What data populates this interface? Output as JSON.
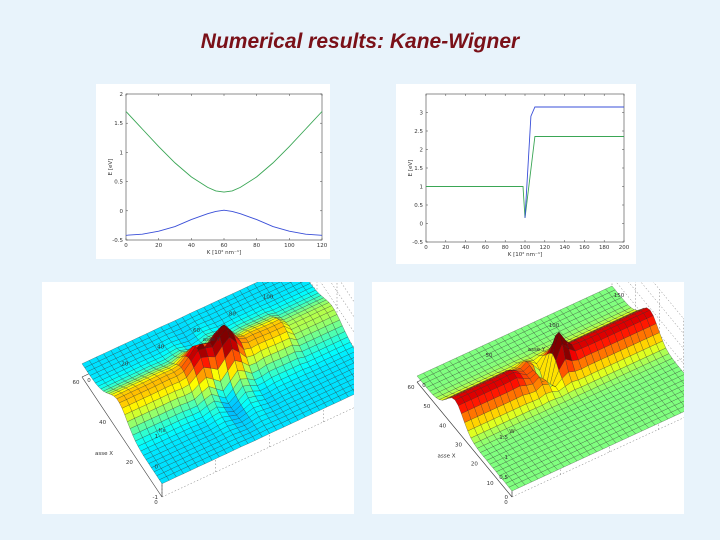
{
  "title": "Numerical results: Kane-Wigner",
  "chart_data": [
    {
      "type": "line",
      "xlabel": "K [10² nm⁻¹]",
      "ylabel": "E [eV]",
      "xlim": [
        0,
        120
      ],
      "ylim": [
        -0.5,
        2
      ],
      "xticks": [
        "0",
        "20",
        "40",
        "60",
        "80",
        "100",
        "120"
      ],
      "yticks": [
        "-0.5",
        "0",
        "0.5",
        "1",
        "1.5",
        "2"
      ],
      "grid": false,
      "series": [
        {
          "color": "#3aa655",
          "x": [
            0,
            10,
            20,
            30,
            40,
            50,
            55,
            60,
            65,
            70,
            80,
            90,
            100,
            110,
            120
          ],
          "values": [
            1.7,
            1.4,
            1.1,
            0.82,
            0.58,
            0.4,
            0.34,
            0.32,
            0.34,
            0.4,
            0.58,
            0.82,
            1.1,
            1.4,
            1.7
          ]
        },
        {
          "color": "#3a4fd8",
          "x": [
            0,
            10,
            20,
            30,
            40,
            50,
            55,
            60,
            65,
            70,
            80,
            90,
            100,
            110,
            120
          ],
          "values": [
            -0.42,
            -0.4,
            -0.35,
            -0.27,
            -0.15,
            -0.05,
            -0.01,
            0.01,
            -0.01,
            -0.05,
            -0.15,
            -0.27,
            -0.35,
            -0.4,
            -0.42
          ]
        }
      ]
    },
    {
      "type": "line",
      "xlabel": "K [10² nm⁻¹]",
      "ylabel": "E [eV]",
      "xlim": [
        0,
        200
      ],
      "ylim": [
        -0.5,
        3.5
      ],
      "xticks": [
        "0",
        "20",
        "40",
        "60",
        "80",
        "100",
        "120",
        "140",
        "160",
        "180",
        "200"
      ],
      "yticks": [
        "-0.5",
        "0",
        "0.5",
        "1",
        "1.5",
        "2",
        "2.5",
        "3"
      ],
      "grid": false,
      "series": [
        {
          "color": "#3aa655",
          "x": [
            0,
            98,
            100,
            110,
            200
          ],
          "values": [
            1.0,
            1.0,
            0.15,
            2.35,
            2.35
          ]
        },
        {
          "color": "#3a4fd8",
          "x": [
            100,
            106,
            110,
            200
          ],
          "values": [
            0.15,
            2.9,
            3.15,
            3.15
          ]
        }
      ]
    },
    {
      "type": "surface",
      "xlabel": "asse X",
      "ylabel": "asse Y",
      "zlabel": "f(x",
      "xticks": [
        "0",
        "20",
        "40",
        "60"
      ],
      "yticks": [
        "0",
        "20",
        "40",
        "60",
        "80",
        "100",
        "120"
      ],
      "zticks": [
        "-1",
        "0",
        "1"
      ]
    },
    {
      "type": "surface",
      "xlabel": "asse X",
      "ylabel": "asse Y",
      "zlabel": "W",
      "xticks": [
        "0",
        "10",
        "20",
        "30",
        "40",
        "50",
        "60"
      ],
      "yticks": [
        "0",
        "50",
        "100",
        "150"
      ],
      "zticks": [
        "0",
        "0.5",
        "1",
        "1.5"
      ]
    }
  ]
}
